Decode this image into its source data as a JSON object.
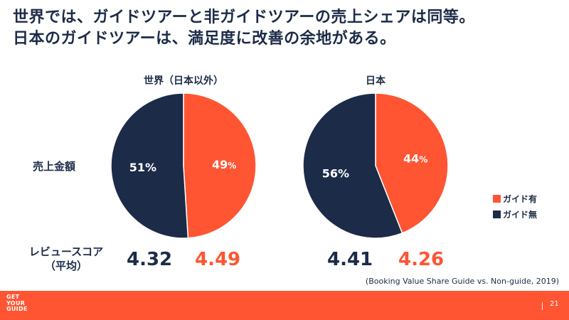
{
  "title": {
    "line1": "世界では、ガイドツアーと非ガイドツアーの売上シェアは同等。",
    "line2": "日本のガイドツアーは、満足度に改善の余地がある。"
  },
  "row_labels": {
    "sales": "売上金額",
    "review_line1": "レビュースコア",
    "review_line2": "（平均）"
  },
  "chart_data": [
    {
      "type": "pie",
      "title": "世界（日本以外）",
      "slices": [
        {
          "label": "ガイド有",
          "value": 49,
          "display": "49",
          "suffix": "%",
          "color": "#ff5533"
        },
        {
          "label": "ガイド無",
          "value": 51,
          "display": "51",
          "suffix": "%",
          "color": "#1c2b47"
        }
      ],
      "review_scores": {
        "ガイド無": "4.32",
        "ガイド有": "4.49"
      }
    },
    {
      "type": "pie",
      "title": "日本",
      "slices": [
        {
          "label": "ガイド有",
          "value": 44,
          "display": "44",
          "suffix": "%",
          "color": "#ff5533"
        },
        {
          "label": "ガイド無",
          "value": 56,
          "display": "56",
          "suffix": "%",
          "color": "#1c2b47"
        }
      ],
      "review_scores": {
        "ガイド無": "4.41",
        "ガイド有": "4.26"
      }
    }
  ],
  "legend": [
    {
      "label": "ガイド有",
      "color": "#ff5533"
    },
    {
      "label": "ガイド無",
      "color": "#1c2b47"
    }
  ],
  "source": "(Booking Value Share Guide vs. Non-guide, 2019)",
  "footer": {
    "logo_lines": [
      "GET",
      "YOUR",
      "GUIDE"
    ],
    "page_number": "21"
  },
  "colors": {
    "navy": "#1c2b47",
    "orange": "#ff5533"
  }
}
